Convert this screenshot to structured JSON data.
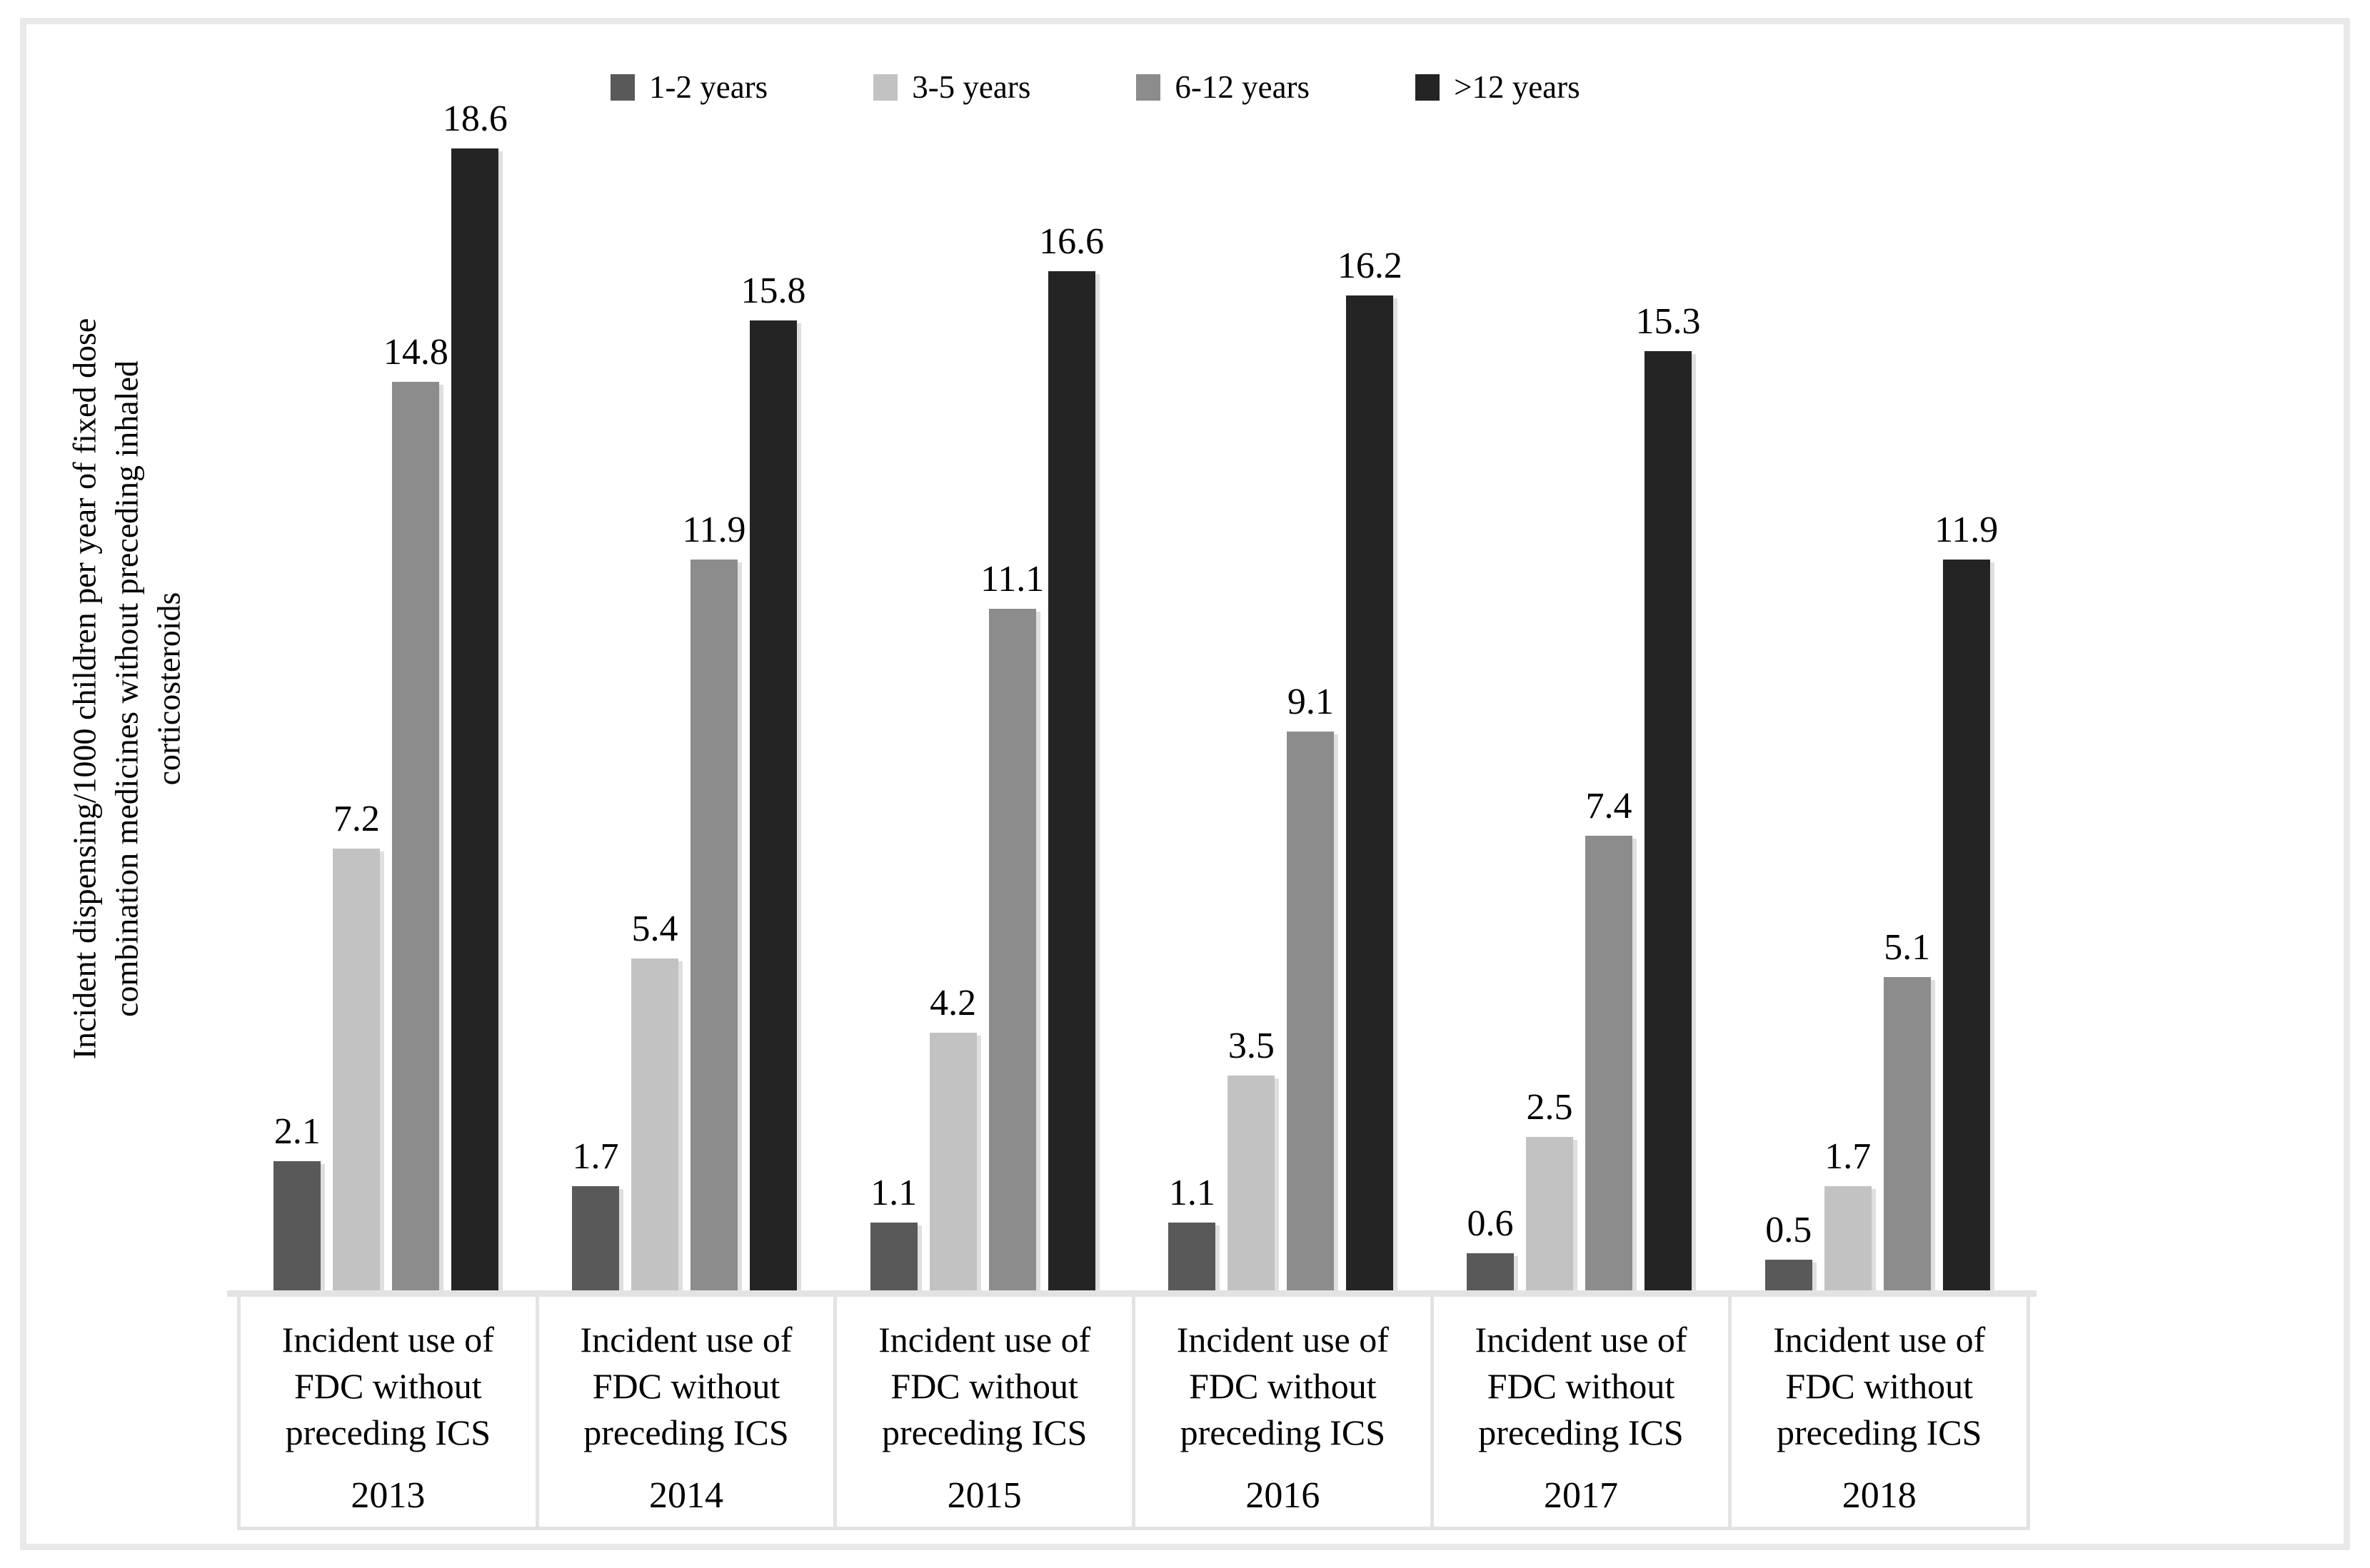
{
  "chart_data": {
    "type": "bar",
    "title": "",
    "ylabel": "Incident dispensing/1000 children per year of fixed dose combination medicines without preceding inhaled corticosteroids",
    "ylabel_lines": [
      "Incident dispensing/1000  children per year of fixed dose",
      "combination  medicines without preceding inhaled",
      "corticosteroids"
    ],
    "categories": [
      "2013",
      "2014",
      "2015",
      "2016",
      "2017",
      "2018"
    ],
    "category_label_lines": [
      "Incident use of",
      "FDC without",
      "preceding ICS"
    ],
    "series": [
      {
        "name": "1-2 years",
        "color": "#595959",
        "values": [
          2.1,
          1.7,
          1.1,
          1.1,
          0.6,
          0.5
        ]
      },
      {
        "name": "3-5 years",
        "color": "#c2c2c2",
        "values": [
          7.2,
          5.4,
          4.2,
          3.5,
          2.5,
          1.7
        ]
      },
      {
        "name": "6-12 years",
        "color": "#8c8c8c",
        "values": [
          14.8,
          11.9,
          11.1,
          9.1,
          7.4,
          5.1
        ]
      },
      {
        "name": ">12 years",
        "color": "#242424",
        "values": [
          18.6,
          15.8,
          16.6,
          16.2,
          15.3,
          11.9
        ]
      }
    ],
    "ylim": [
      0,
      18.6
    ],
    "grid": false,
    "legend_position": "top",
    "axis_color": "#e3e3e3",
    "frame_color": "#e9e9e9",
    "text_color": "#000000"
  }
}
